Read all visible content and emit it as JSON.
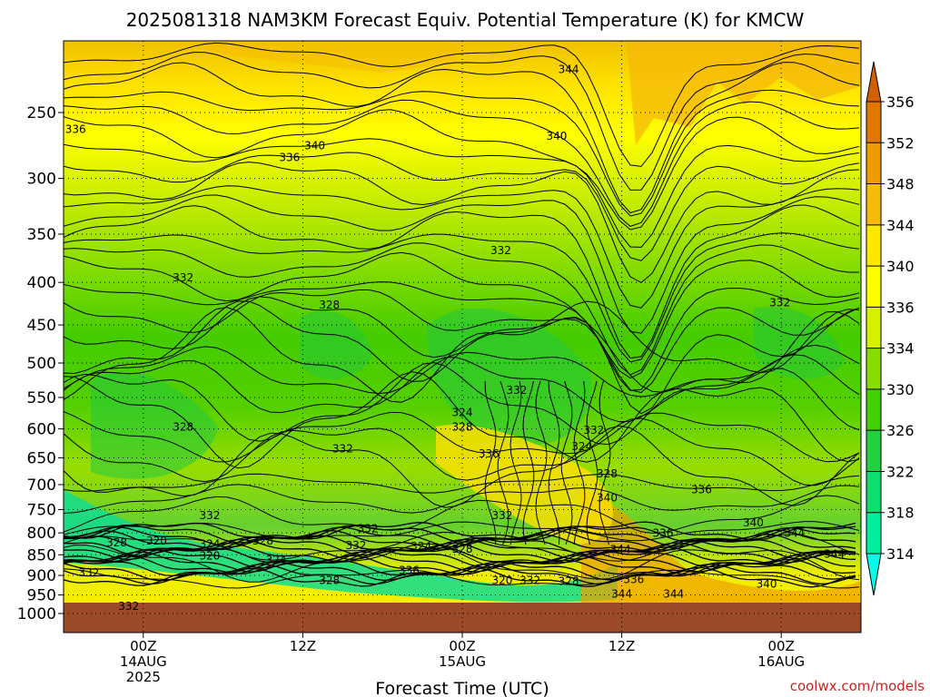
{
  "chart_data": {
    "type": "heatmap",
    "title": "2025081318 NAM3KM Forecast Equiv. Potential Temperature (K) for KMCW",
    "xlabel": "Forecast Time (UTC)",
    "ylabel": "",
    "credit": "coolwx.com/models",
    "y_scale": "log",
    "y_reversed": true,
    "ylim": [
      1040,
      200
    ],
    "y_ticks": [
      "250",
      "300",
      "350",
      "400",
      "450",
      "500",
      "550",
      "600",
      "650",
      "700",
      "750",
      "800",
      "850",
      "900",
      "950",
      "1000"
    ],
    "y_tick_values": [
      250,
      300,
      350,
      400,
      450,
      500,
      550,
      600,
      650,
      700,
      750,
      800,
      850,
      900,
      950,
      1000
    ],
    "x_ticks": [
      {
        "hour": 24,
        "line1": "00Z",
        "line2": "14AUG",
        "line3": "2025"
      },
      {
        "hour": 36,
        "line1": "12Z",
        "line2": "",
        "line3": ""
      },
      {
        "hour": 48,
        "line1": "00Z",
        "line2": "15AUG",
        "line3": ""
      },
      {
        "hour": 60,
        "line1": "12Z",
        "line2": "",
        "line3": ""
      },
      {
        "hour": 72,
        "line1": "00Z",
        "line2": "16AUG",
        "line3": ""
      }
    ],
    "xlim_hours": [
      18,
      78
    ],
    "grid": true,
    "colorbar": {
      "placement": "right",
      "levels": [
        "356",
        "352",
        "348",
        "344",
        "340",
        "336",
        "334",
        "330",
        "326",
        "322",
        "318",
        "314"
      ],
      "colors": [
        "#e07800",
        "#f09a00",
        "#f6bb08",
        "#ffe800",
        "#ffff00",
        "#d6f000",
        "#88dd00",
        "#44d000",
        "#22d040",
        "#10dd70",
        "#00eea0",
        "#00ffd0"
      ]
    },
    "contour_labels": [
      {
        "text": "344",
        "t": 56.0,
        "p": 222
      },
      {
        "text": "336",
        "t": 18.9,
        "p": 262
      },
      {
        "text": "340",
        "t": 55.1,
        "p": 267
      },
      {
        "text": "340",
        "t": 36.9,
        "p": 274
      },
      {
        "text": "336",
        "t": 35.0,
        "p": 283
      },
      {
        "text": "332",
        "t": 50.9,
        "p": 366
      },
      {
        "text": "332",
        "t": 27.0,
        "p": 395
      },
      {
        "text": "332",
        "t": 71.9,
        "p": 423
      },
      {
        "text": "328",
        "t": 38.0,
        "p": 426
      },
      {
        "text": "332",
        "t": 52.1,
        "p": 539
      },
      {
        "text": "324",
        "t": 48.0,
        "p": 573
      },
      {
        "text": "328",
        "t": 48.0,
        "p": 597
      },
      {
        "text": "328",
        "t": 27.0,
        "p": 597
      },
      {
        "text": "332",
        "t": 57.9,
        "p": 602
      },
      {
        "text": "332",
        "t": 39.0,
        "p": 634
      },
      {
        "text": "336",
        "t": 50.0,
        "p": 643
      },
      {
        "text": "324",
        "t": 57.0,
        "p": 630
      },
      {
        "text": "328",
        "t": 58.9,
        "p": 679
      },
      {
        "text": "336",
        "t": 66.0,
        "p": 710
      },
      {
        "text": "340",
        "t": 58.9,
        "p": 726
      },
      {
        "text": "332",
        "t": 51.0,
        "p": 762
      },
      {
        "text": "332",
        "t": 29.0,
        "p": 762
      },
      {
        "text": "340",
        "t": 69.9,
        "p": 778
      },
      {
        "text": "336",
        "t": 63.1,
        "p": 801
      },
      {
        "text": "344",
        "t": 73.0,
        "p": 801
      },
      {
        "text": "332",
        "t": 40.9,
        "p": 791
      },
      {
        "text": "328",
        "t": 22.0,
        "p": 822
      },
      {
        "text": "320",
        "t": 25.0,
        "p": 818
      },
      {
        "text": "324",
        "t": 29.0,
        "p": 825
      },
      {
        "text": "328",
        "t": 33.0,
        "p": 818
      },
      {
        "text": "332",
        "t": 40.0,
        "p": 828
      },
      {
        "text": "324",
        "t": 44.9,
        "p": 830
      },
      {
        "text": "328",
        "t": 48.0,
        "p": 837
      },
      {
        "text": "344",
        "t": 59.9,
        "p": 838
      },
      {
        "text": "344",
        "t": 76.0,
        "p": 848
      },
      {
        "text": "320",
        "t": 29.0,
        "p": 853
      },
      {
        "text": "324",
        "t": 34.0,
        "p": 862
      },
      {
        "text": "332",
        "t": 19.9,
        "p": 893
      },
      {
        "text": "336",
        "t": 44.0,
        "p": 887
      },
      {
        "text": "328",
        "t": 38.0,
        "p": 912
      },
      {
        "text": "320",
        "t": 51.0,
        "p": 912
      },
      {
        "text": "332",
        "t": 53.1,
        "p": 912
      },
      {
        "text": "328",
        "t": 56.0,
        "p": 915
      },
      {
        "text": "336",
        "t": 60.9,
        "p": 910
      },
      {
        "text": "340",
        "t": 70.9,
        "p": 922
      },
      {
        "text": "344",
        "t": 60.0,
        "p": 948
      },
      {
        "text": "344",
        "t": 63.9,
        "p": 948
      },
      {
        "text": "332",
        "t": 22.9,
        "p": 980
      }
    ]
  }
}
